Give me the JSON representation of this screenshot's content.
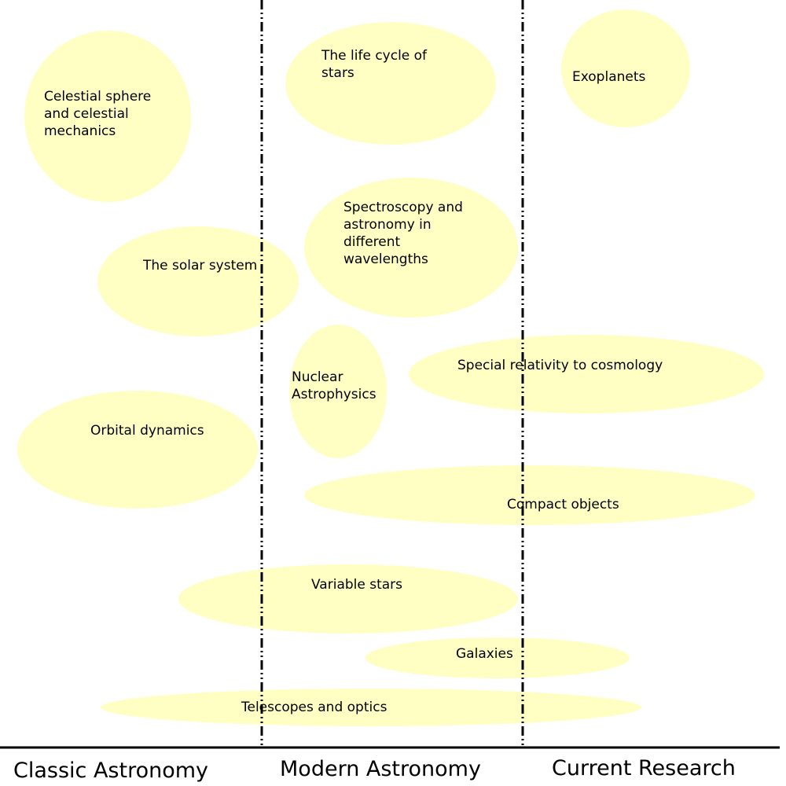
{
  "colors": {
    "bubble_fill": "#ffffc4",
    "line": "#000000",
    "background": "#ffffff"
  },
  "eras": [
    {
      "label": "Classic Astronomy"
    },
    {
      "label": "Modern Astronomy"
    },
    {
      "label": "Current Research"
    }
  ],
  "topics": [
    {
      "id": "celestial-sphere",
      "lines": [
        "Celestial sphere",
        "and celestial",
        "mechanics"
      ]
    },
    {
      "id": "life-cycle-of-stars",
      "lines": [
        "The life cycle of",
        "stars"
      ]
    },
    {
      "id": "exoplanets",
      "lines": [
        "Exoplanets"
      ]
    },
    {
      "id": "spectroscopy",
      "lines": [
        "Spectroscopy and",
        "astronomy in",
        "different",
        "wavelengths"
      ]
    },
    {
      "id": "solar-system",
      "lines": [
        "The solar system"
      ]
    },
    {
      "id": "nuclear-astrophysics",
      "lines": [
        "Nuclear",
        "Astrophysics"
      ]
    },
    {
      "id": "special-relativity",
      "lines": [
        "Special relativity to cosmology"
      ]
    },
    {
      "id": "orbital-dynamics",
      "lines": [
        "Orbital dynamics"
      ]
    },
    {
      "id": "compact-objects",
      "lines": [
        "Compact objects"
      ]
    },
    {
      "id": "variable-stars",
      "lines": [
        "Variable stars"
      ]
    },
    {
      "id": "galaxies",
      "lines": [
        "Galaxies"
      ]
    },
    {
      "id": "telescopes-optics",
      "lines": [
        "Telescopes and optics"
      ]
    }
  ]
}
